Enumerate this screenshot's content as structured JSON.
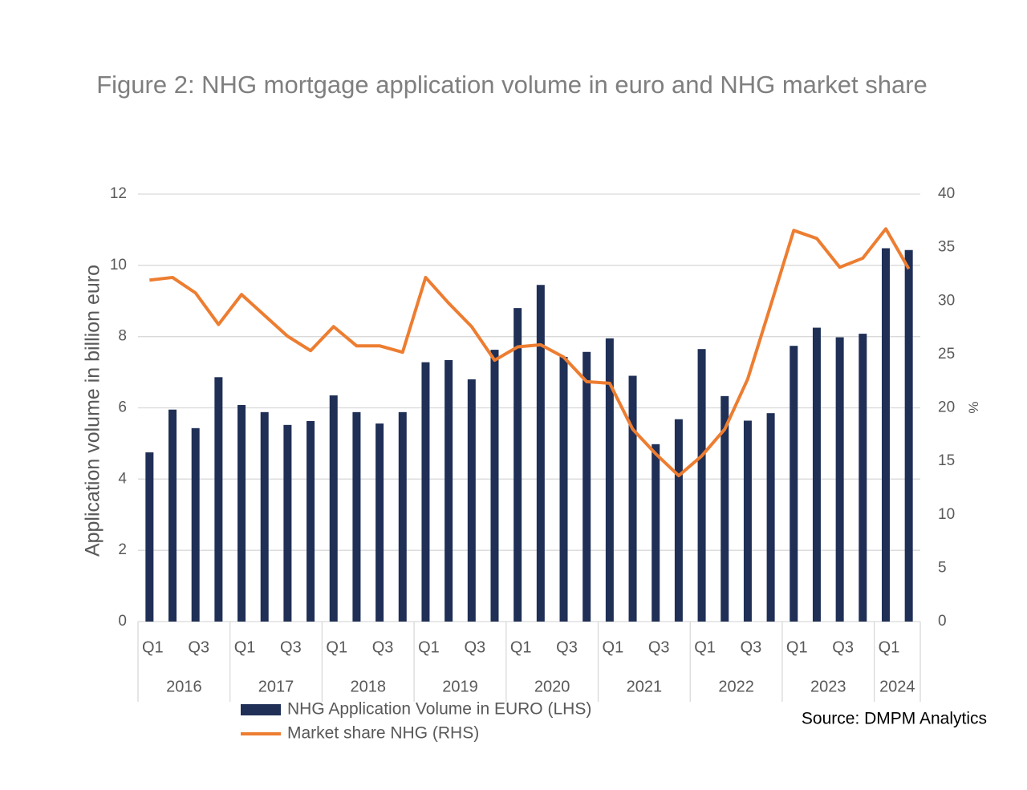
{
  "chart_data": {
    "type": "bar",
    "title": "Figure 2: NHG mortgage application volume in euro and NHG market share",
    "y_label": "Application volume in billion euro",
    "y2_label": "%",
    "categories": [
      "Q1",
      null,
      "Q3",
      null,
      "Q1",
      null,
      "Q3",
      null,
      "Q1",
      null,
      "Q3",
      null,
      "Q1",
      null,
      "Q3",
      null,
      "Q1",
      null,
      "Q3",
      null,
      "Q1",
      null,
      "Q3",
      null,
      "Q1",
      null,
      "Q3",
      null,
      "Q1",
      null,
      "Q3",
      null,
      "Q1",
      null
    ],
    "category_groups": [
      "2016",
      "2017",
      "2018",
      "2019",
      "2020",
      "2021",
      "2022",
      "2023",
      "2024"
    ],
    "series": [
      {
        "name": "NHG Application Volume in EURO (LHS)",
        "color": "#1f2f56",
        "type": "bar",
        "values": [
          4.75,
          5.95,
          5.43,
          6.86,
          6.08,
          5.88,
          5.52,
          5.63,
          6.35,
          5.88,
          5.56,
          5.88,
          7.28,
          7.34,
          6.8,
          7.63,
          8.8,
          9.45,
          7.43,
          7.57,
          7.95,
          6.9,
          4.98,
          5.68,
          7.65,
          6.33,
          5.64,
          5.85,
          7.74,
          8.25,
          7.98,
          8.08,
          10.48,
          10.43
        ]
      },
      {
        "name": "Market share NHG (RHS)",
        "color": "#ed7d31",
        "type": "line",
        "axis": "y2",
        "values": [
          31.95,
          32.2,
          30.75,
          27.8,
          30.6,
          28.65,
          26.7,
          25.35,
          27.6,
          25.8,
          25.8,
          25.2,
          32.2,
          29.8,
          27.6,
          24.45,
          25.7,
          25.9,
          24.75,
          22.45,
          22.3,
          18.0,
          15.7,
          13.65,
          15.5,
          18.0,
          22.7,
          29.6,
          36.6,
          35.85,
          33.15,
          34.0,
          36.75,
          33.0
        ]
      }
    ],
    "ylim": [
      0,
      12
    ],
    "yticks": [
      0,
      2,
      4,
      6,
      8,
      10,
      12
    ],
    "y2lim": [
      0,
      40
    ],
    "y2ticks": [
      0,
      5,
      10,
      15,
      20,
      25,
      30,
      35,
      40
    ],
    "grid": true,
    "source": "Source: DMPM Analytics"
  }
}
